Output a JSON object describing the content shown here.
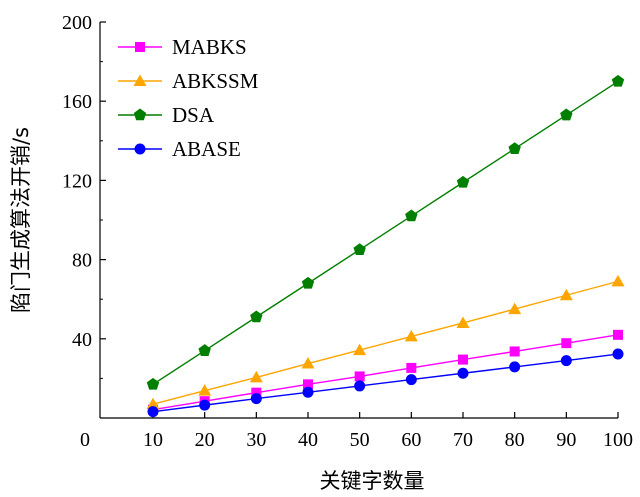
{
  "chart_data": {
    "type": "line",
    "title": "",
    "xlabel": "关键字数量",
    "ylabel": "陷门生成算法开销/s",
    "x": [
      10,
      20,
      30,
      40,
      50,
      60,
      70,
      80,
      90,
      100
    ],
    "x_ticks": [
      "0",
      "10",
      "20",
      "30",
      "40",
      "50",
      "60",
      "70",
      "80",
      "90",
      "100"
    ],
    "y_ticks": [
      "40",
      "80",
      "120",
      "160",
      "200"
    ],
    "xlim": [
      0,
      100
    ],
    "ylim": [
      0,
      200
    ],
    "grid": false,
    "legend_position": "top-left",
    "series": [
      {
        "name": "MABKS",
        "marker": "square",
        "color": "#ff00ff",
        "values": [
          4.2,
          8.5,
          12.8,
          17.0,
          21.0,
          25.3,
          29.5,
          33.6,
          37.8,
          42.0
        ]
      },
      {
        "name": "ABKSSM",
        "marker": "triangle",
        "color": "#ffa500",
        "values": [
          7.0,
          13.8,
          20.5,
          27.5,
          34.3,
          41.2,
          48.0,
          55.0,
          62.0,
          69.0
        ]
      },
      {
        "name": "DSA",
        "marker": "pentagon",
        "color": "#007f00",
        "values": [
          17.0,
          34.0,
          51.0,
          68.0,
          85.0,
          102.0,
          119.0,
          136.0,
          153.0,
          170.0
        ]
      },
      {
        "name": "ABASE",
        "marker": "circle",
        "color": "#0000ff",
        "values": [
          3.2,
          6.5,
          9.8,
          13.0,
          16.2,
          19.4,
          22.6,
          25.8,
          29.0,
          32.3
        ]
      }
    ]
  }
}
